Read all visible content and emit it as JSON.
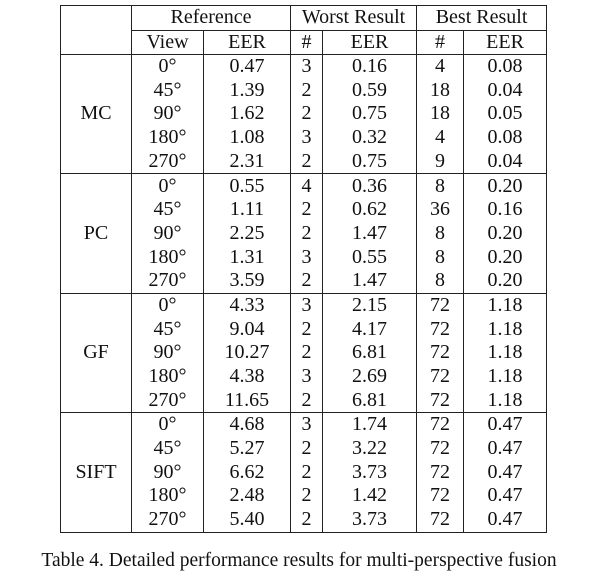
{
  "headers": {
    "group_reference": "Reference",
    "group_worst": "Worst Result",
    "group_best": "Best Result",
    "view": "View",
    "eer": "EER",
    "hash": "#"
  },
  "groups": [
    {
      "method": "MC",
      "rows": [
        {
          "view": "0°",
          "ref_eer": "0.47",
          "worst_n": "3",
          "worst_eer": "0.16",
          "best_n": "4",
          "best_eer": "0.08"
        },
        {
          "view": "45°",
          "ref_eer": "1.39",
          "worst_n": "2",
          "worst_eer": "0.59",
          "best_n": "18",
          "best_eer": "0.04"
        },
        {
          "view": "90°",
          "ref_eer": "1.62",
          "worst_n": "2",
          "worst_eer": "0.75",
          "best_n": "18",
          "best_eer": "0.05"
        },
        {
          "view": "180°",
          "ref_eer": "1.08",
          "worst_n": "3",
          "worst_eer": "0.32",
          "best_n": "4",
          "best_eer": "0.08"
        },
        {
          "view": "270°",
          "ref_eer": "2.31",
          "worst_n": "2",
          "worst_eer": "0.75",
          "best_n": "9",
          "best_eer": "0.04"
        }
      ]
    },
    {
      "method": "PC",
      "rows": [
        {
          "view": "0°",
          "ref_eer": "0.55",
          "worst_n": "4",
          "worst_eer": "0.36",
          "best_n": "8",
          "best_eer": "0.20"
        },
        {
          "view": "45°",
          "ref_eer": "1.11",
          "worst_n": "2",
          "worst_eer": "0.62",
          "best_n": "36",
          "best_eer": "0.16"
        },
        {
          "view": "90°",
          "ref_eer": "2.25",
          "worst_n": "2",
          "worst_eer": "1.47",
          "best_n": "8",
          "best_eer": "0.20"
        },
        {
          "view": "180°",
          "ref_eer": "1.31",
          "worst_n": "3",
          "worst_eer": "0.55",
          "best_n": "8",
          "best_eer": "0.20"
        },
        {
          "view": "270°",
          "ref_eer": "3.59",
          "worst_n": "2",
          "worst_eer": "1.47",
          "best_n": "8",
          "best_eer": "0.20"
        }
      ]
    },
    {
      "method": "GF",
      "rows": [
        {
          "view": "0°",
          "ref_eer": "4.33",
          "worst_n": "3",
          "worst_eer": "2.15",
          "best_n": "72",
          "best_eer": "1.18"
        },
        {
          "view": "45°",
          "ref_eer": "9.04",
          "worst_n": "2",
          "worst_eer": "4.17",
          "best_n": "72",
          "best_eer": "1.18"
        },
        {
          "view": "90°",
          "ref_eer": "10.27",
          "worst_n": "2",
          "worst_eer": "6.81",
          "best_n": "72",
          "best_eer": "1.18"
        },
        {
          "view": "180°",
          "ref_eer": "4.38",
          "worst_n": "3",
          "worst_eer": "2.69",
          "best_n": "72",
          "best_eer": "1.18"
        },
        {
          "view": "270°",
          "ref_eer": "11.65",
          "worst_n": "2",
          "worst_eer": "6.81",
          "best_n": "72",
          "best_eer": "1.18"
        }
      ]
    },
    {
      "method": "SIFT",
      "rows": [
        {
          "view": "0°",
          "ref_eer": "4.68",
          "worst_n": "3",
          "worst_eer": "1.74",
          "best_n": "72",
          "best_eer": "0.47"
        },
        {
          "view": "45°",
          "ref_eer": "5.27",
          "worst_n": "2",
          "worst_eer": "3.22",
          "best_n": "72",
          "best_eer": "0.47"
        },
        {
          "view": "90°",
          "ref_eer": "6.62",
          "worst_n": "2",
          "worst_eer": "3.73",
          "best_n": "72",
          "best_eer": "0.47"
        },
        {
          "view": "180°",
          "ref_eer": "2.48",
          "worst_n": "2",
          "worst_eer": "1.42",
          "best_n": "72",
          "best_eer": "0.47"
        },
        {
          "view": "270°",
          "ref_eer": "5.40",
          "worst_n": "2",
          "worst_eer": "3.73",
          "best_n": "72",
          "best_eer": "0.47"
        }
      ]
    }
  ],
  "caption": "Table 4. Detailed performance results for multi-perspective fusion"
}
